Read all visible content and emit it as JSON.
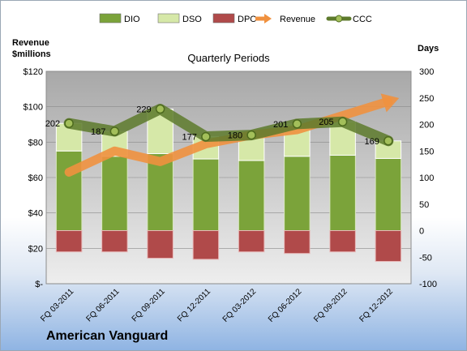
{
  "chart_data": {
    "type": "bar+line",
    "subtitle": "Quarterly Periods",
    "left_axis": {
      "title_lines": [
        "Revenue",
        "$millions"
      ],
      "ticks": [
        "$-",
        "$20",
        "$40",
        "$60",
        "$80",
        "$100",
        "$120"
      ],
      "range": [
        0,
        120
      ]
    },
    "right_axis": {
      "title": "Days",
      "ticks": [
        "-100",
        "-50",
        "0",
        "50",
        "100",
        "150",
        "200",
        "250",
        "300"
      ],
      "range": [
        -100,
        300
      ]
    },
    "categories": [
      "FQ 03-2011",
      "FQ 06-2011",
      "FQ 09-2011",
      "FQ 12-2011",
      "FQ 03-2012",
      "FQ 06-2012",
      "FQ 09-2012",
      "FQ 12-2012"
    ],
    "legend": [
      "DIO",
      "DSO",
      "DPO",
      "Revenue",
      "CCC"
    ],
    "series": [
      {
        "name": "DIO",
        "axis": "days",
        "values": [
          150,
          140,
          145,
          135,
          132,
          140,
          142,
          136
        ]
      },
      {
        "name": "DSO",
        "axis": "days",
        "values": [
          52,
          47,
          84,
          42,
          48,
          61,
          63,
          33
        ]
      },
      {
        "name": "DPO",
        "axis": "days",
        "values": [
          -40,
          -40,
          -52,
          -54,
          -40,
          -43,
          -40,
          -58
        ]
      },
      {
        "name": "Revenue",
        "axis": "revenue",
        "values": [
          63,
          75,
          69,
          79,
          84,
          87,
          95,
          103
        ]
      },
      {
        "name": "CCC",
        "axis": "days",
        "values": [
          202,
          187,
          229,
          177,
          180,
          201,
          205,
          169
        ]
      }
    ],
    "ccc_labels": [
      "202",
      "187",
      "229",
      "177",
      "180",
      "201",
      "205",
      "169"
    ],
    "colors": {
      "DIO": "#7ba33a",
      "DSO": "#d6e8a8",
      "DPO": "#b04a4a",
      "Revenue": "#f0913f",
      "CCC": "#5d7a2c",
      "plot_bg": "#c9c9c9"
    }
  },
  "footer": {
    "company": "American Vanguard"
  }
}
